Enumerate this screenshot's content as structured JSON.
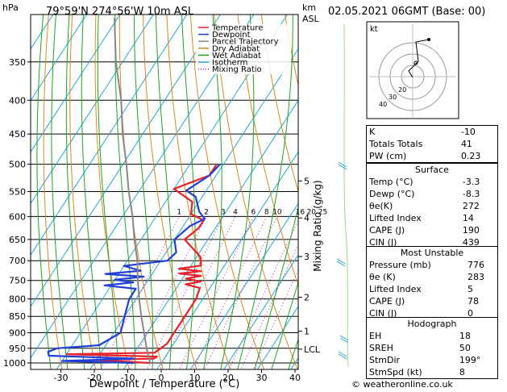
{
  "header": {
    "hpa_label": "hPa",
    "location": "79°59'N  274°56'W  10m  ASL",
    "km_label": "km",
    "asl_label": "ASL",
    "datetime": "02.05.2021  06GMT  (Base: 00)"
  },
  "legend": [
    {
      "label": "Temperature",
      "color": "#e8222a"
    },
    {
      "label": "Dewpoint",
      "color": "#1f3fd6"
    },
    {
      "label": "Parcel Trajectory",
      "color": "#888888"
    },
    {
      "label": "Dry Adiabat",
      "color": "#d98a1c"
    },
    {
      "label": "Wet Adiabat",
      "color": "#1ea51e"
    },
    {
      "label": "Isotherm",
      "color": "#1fa8d8"
    },
    {
      "label": "Mixing Ratio",
      "color": "#c0179e"
    }
  ],
  "chart_data": {
    "type": "line",
    "xlabel": "Dewpoint / Temperature (°C)",
    "ylabel": "hPa",
    "right_label": "Mixing Ratio (g/kg)",
    "xlim": [
      -35,
      40
    ],
    "ylim": [
      1000,
      300
    ],
    "y_log": true,
    "x_ticks": [
      "-30",
      "-20",
      "-10",
      "0",
      "10",
      "20",
      "30",
      "40"
    ],
    "p_levels": [
      "350",
      "400",
      "450",
      "500",
      "550",
      "600",
      "650",
      "700",
      "750",
      "800",
      "850",
      "900",
      "950",
      "1000"
    ],
    "km_ticks": [
      {
        "p": 530,
        "label": "5"
      },
      {
        "p": 603,
        "label": "4"
      },
      {
        "p": 690,
        "label": "3"
      },
      {
        "p": 795,
        "label": "2"
      },
      {
        "p": 895,
        "label": "1"
      },
      {
        "p": 953,
        "label": "LCL"
      }
    ],
    "mixing_ratio_labels": [
      "1",
      "2",
      "3",
      "4",
      "6",
      "8",
      "10",
      "16",
      "20",
      "25"
    ],
    "mixing_ratio_values": [
      1,
      2,
      3,
      4,
      6,
      8,
      10,
      16,
      20,
      25
    ],
    "series": [
      {
        "name": "Temperature",
        "color": "#e8222a",
        "points": [
          [
            1000,
            -3.3
          ],
          [
            990,
            -20
          ],
          [
            985,
            -3
          ],
          [
            978,
            -2.5
          ],
          [
            970,
            -30
          ],
          [
            965,
            -4
          ],
          [
            958,
            -3.5
          ],
          [
            935,
            -2
          ],
          [
            900,
            -2
          ],
          [
            800,
            -2
          ],
          [
            770,
            -3
          ],
          [
            760,
            -8
          ],
          [
            753,
            -4
          ],
          [
            745,
            -9
          ],
          [
            738,
            -5
          ],
          [
            732,
            -12
          ],
          [
            726,
            -6
          ],
          [
            720,
            -13
          ],
          [
            712,
            -7
          ],
          [
            700,
            -8
          ],
          [
            690,
            -9
          ],
          [
            650,
            -17
          ],
          [
            625,
            -15
          ],
          [
            608,
            -15
          ],
          [
            595,
            -20
          ],
          [
            570,
            -22
          ],
          [
            545,
            -30
          ],
          [
            520,
            -22
          ],
          [
            500,
            -22
          ]
        ]
      },
      {
        "name": "Dewpoint",
        "color": "#1f3fd6",
        "points": [
          [
            1000,
            -8.3
          ],
          [
            993,
            -30
          ],
          [
            985,
            -9
          ],
          [
            975,
            -35
          ],
          [
            962,
            -36
          ],
          [
            950,
            -34
          ],
          [
            940,
            -22
          ],
          [
            900,
            -18
          ],
          [
            850,
            -20
          ],
          [
            800,
            -22
          ],
          [
            772,
            -22
          ],
          [
            763,
            -32
          ],
          [
            755,
            -24
          ],
          [
            748,
            -30
          ],
          [
            740,
            -22
          ],
          [
            733,
            -34
          ],
          [
            725,
            -24
          ],
          [
            713,
            -30
          ],
          [
            700,
            -18
          ],
          [
            680,
            -17
          ],
          [
            650,
            -20
          ],
          [
            620,
            -18
          ],
          [
            605,
            -15
          ],
          [
            590,
            -18
          ],
          [
            560,
            -22
          ],
          [
            548,
            -26
          ],
          [
            520,
            -22
          ],
          [
            500,
            -21
          ]
        ]
      },
      {
        "name": "Parcel Trajectory",
        "color": "#888888",
        "points": [
          [
            1000,
            -3.3
          ],
          [
            953,
            -7
          ],
          [
            900,
            -11
          ],
          [
            850,
            -15
          ],
          [
            800,
            -19
          ],
          [
            750,
            -23
          ],
          [
            700,
            -27
          ],
          [
            650,
            -32
          ],
          [
            600,
            -37
          ],
          [
            550,
            -43
          ],
          [
            500,
            -49
          ],
          [
            450,
            -56
          ],
          [
            400,
            -63
          ],
          [
            350,
            -72
          ],
          [
            300,
            -81
          ]
        ]
      }
    ]
  },
  "hodograph": {
    "label": "kt",
    "ring_labels": [
      "40",
      "30",
      "20"
    ]
  },
  "stats": {
    "top": [
      {
        "label": "K",
        "value": "-10"
      },
      {
        "label": "Totals Totals",
        "value": "41"
      },
      {
        "label": "PW (cm)",
        "value": "0.23"
      }
    ],
    "surface": {
      "title": "Surface",
      "rows": [
        {
          "label": "Temp (°C)",
          "value": "-3.3"
        },
        {
          "label": "Dewp (°C)",
          "value": "-8.3"
        },
        {
          "label": "θe(K)",
          "value": "272"
        },
        {
          "label": "Lifted Index",
          "value": "14"
        },
        {
          "label": "CAPE (J)",
          "value": "190"
        },
        {
          "label": "CIN (J)",
          "value": "439"
        }
      ]
    },
    "most_unstable": {
      "title": "Most Unstable",
      "rows": [
        {
          "label": "Pressure (mb)",
          "value": "776"
        },
        {
          "label": "θe (K)",
          "value": "283"
        },
        {
          "label": "Lifted Index",
          "value": "5"
        },
        {
          "label": "CAPE (J)",
          "value": "78"
        },
        {
          "label": "CIN (J)",
          "value": "0"
        }
      ]
    },
    "hodograph": {
      "title": "Hodograph",
      "rows": [
        {
          "label": "EH",
          "value": "18"
        },
        {
          "label": "SREH",
          "value": "50"
        },
        {
          "label": "StmDir",
          "value": "199°"
        },
        {
          "label": "StmSpd (kt)",
          "value": "8"
        }
      ]
    }
  },
  "credit": "© weatheronline.co.uk"
}
